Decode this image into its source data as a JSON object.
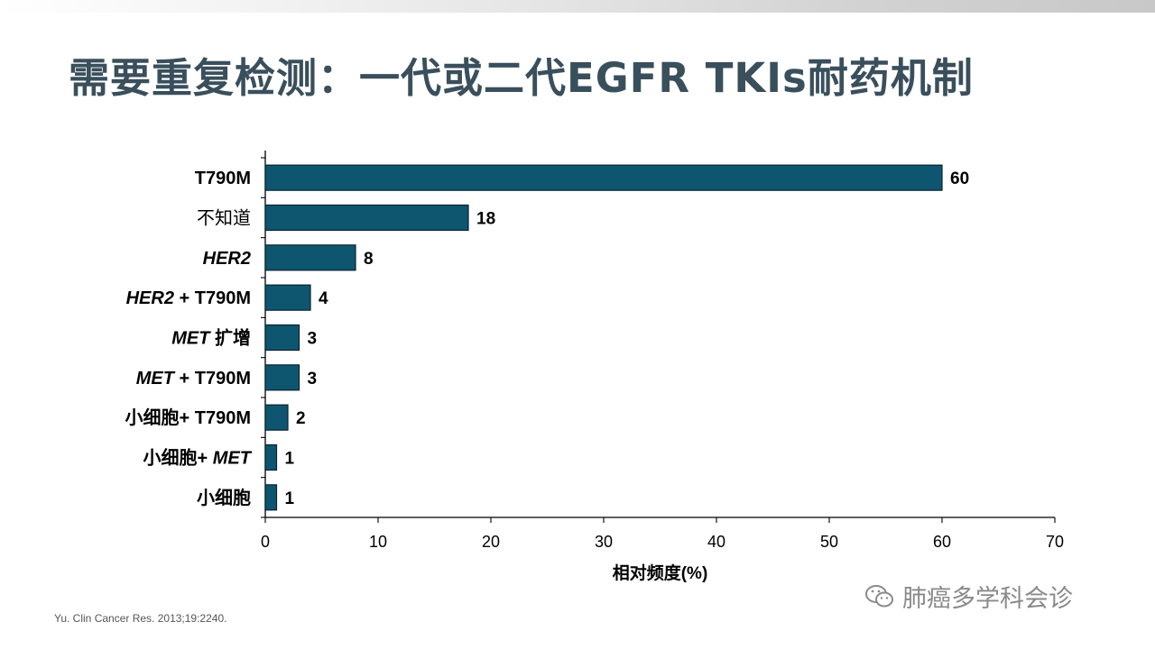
{
  "slide": {
    "title": "需要重复检测：一代或二代EGFR TKIs耐药机制",
    "citation": "Yu. Clin Cancer Res. 2013;19:2240.",
    "watermark": "肺癌多学科会诊"
  },
  "colors": {
    "bar": "#0e5670",
    "bar_edge": "#0a2230",
    "title": "#3a4f5c"
  },
  "chart_data": {
    "type": "bar",
    "orientation": "horizontal",
    "title": "",
    "xlabel": "相对频度(%)",
    "ylabel": "",
    "xlim": [
      0,
      70
    ],
    "xticks": [
      0,
      10,
      20,
      30,
      40,
      50,
      60,
      70
    ],
    "grid": false,
    "categories": [
      [
        {
          "t": "T790M",
          "i": false
        }
      ],
      [
        {
          "t": "不知道",
          "i": false,
          "normal": true
        }
      ],
      [
        {
          "t": "HER2",
          "i": true
        }
      ],
      [
        {
          "t": "HER2",
          "i": true
        },
        {
          "t": " + T790M",
          "i": false
        }
      ],
      [
        {
          "t": "MET",
          "i": true
        },
        {
          "t": " 扩增",
          "i": false
        }
      ],
      [
        {
          "t": "MET",
          "i": true
        },
        {
          "t": " + T790M",
          "i": false
        }
      ],
      [
        {
          "t": "小细胞+ T790M",
          "i": false
        }
      ],
      [
        {
          "t": "小细胞+ ",
          "i": false
        },
        {
          "t": "MET",
          "i": true
        }
      ],
      [
        {
          "t": "小细胞",
          "i": false
        }
      ]
    ],
    "values": [
      60,
      18,
      8,
      4,
      3,
      3,
      2,
      1,
      1
    ]
  }
}
